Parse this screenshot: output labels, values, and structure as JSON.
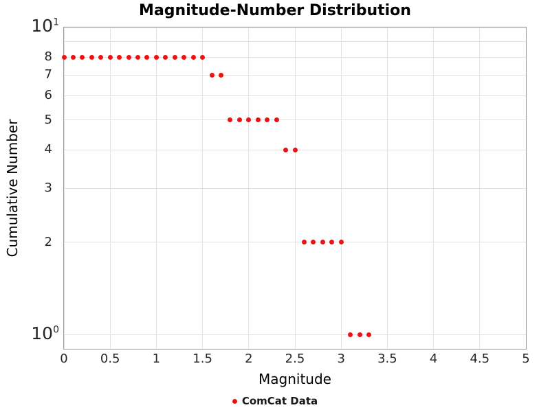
{
  "chart_data": {
    "type": "scatter",
    "title": "Magnitude-Number Distribution",
    "xlabel": "Magnitude",
    "ylabel": "Cumulative Number",
    "xlim": [
      0,
      5
    ],
    "ylim": [
      0.9,
      10
    ],
    "yscale": "log",
    "grid": true,
    "x_ticks": [
      0,
      0.5,
      1,
      1.5,
      2,
      2.5,
      3,
      3.5,
      4,
      4.5,
      5
    ],
    "x_tick_labels": [
      "0",
      "0.5",
      "1",
      "1.5",
      "2",
      "2.5",
      "3",
      "3.5",
      "4",
      "4.5",
      "5"
    ],
    "y_gridlines": [
      1,
      2,
      3,
      4,
      5,
      6,
      7,
      8,
      9,
      10
    ],
    "y_minor_tick_labels": [
      {
        "value": 8,
        "label": "8"
      },
      {
        "value": 7,
        "label": "7"
      },
      {
        "value": 6,
        "label": "6"
      },
      {
        "value": 5,
        "label": "5"
      },
      {
        "value": 4,
        "label": "4"
      },
      {
        "value": 3,
        "label": "3"
      },
      {
        "value": 2,
        "label": "2"
      }
    ],
    "y_major_tick_labels": [
      {
        "value": 10,
        "base": "10",
        "exp": "1"
      },
      {
        "value": 1,
        "base": "10",
        "exp": "0"
      }
    ],
    "legend_position": "bottom-center",
    "series": [
      {
        "name": "ComCat Data",
        "color": "#ee1111",
        "marker": "circle",
        "x": [
          0,
          0.1,
          0.2,
          0.3,
          0.4,
          0.5,
          0.6,
          0.7,
          0.8,
          0.9,
          1.0,
          1.1,
          1.2,
          1.3,
          1.4,
          1.5,
          1.6,
          1.7,
          1.8,
          1.9,
          2.0,
          2.1,
          2.2,
          2.3,
          2.4,
          2.5,
          2.6,
          2.7,
          2.8,
          2.9,
          3.0,
          3.1,
          3.2,
          3.3
        ],
        "y": [
          8,
          8,
          8,
          8,
          8,
          8,
          8,
          8,
          8,
          8,
          8,
          8,
          8,
          8,
          8,
          8,
          7,
          7,
          5,
          5,
          5,
          5,
          5,
          5,
          4,
          4,
          2,
          2,
          2,
          2,
          2,
          1,
          1,
          1
        ]
      }
    ]
  },
  "colors": {
    "marker": "#ee1111",
    "grid": "#e3e3e3",
    "frame": "#9c9c9c",
    "tick_text": "#262626",
    "background": "#ffffff"
  }
}
